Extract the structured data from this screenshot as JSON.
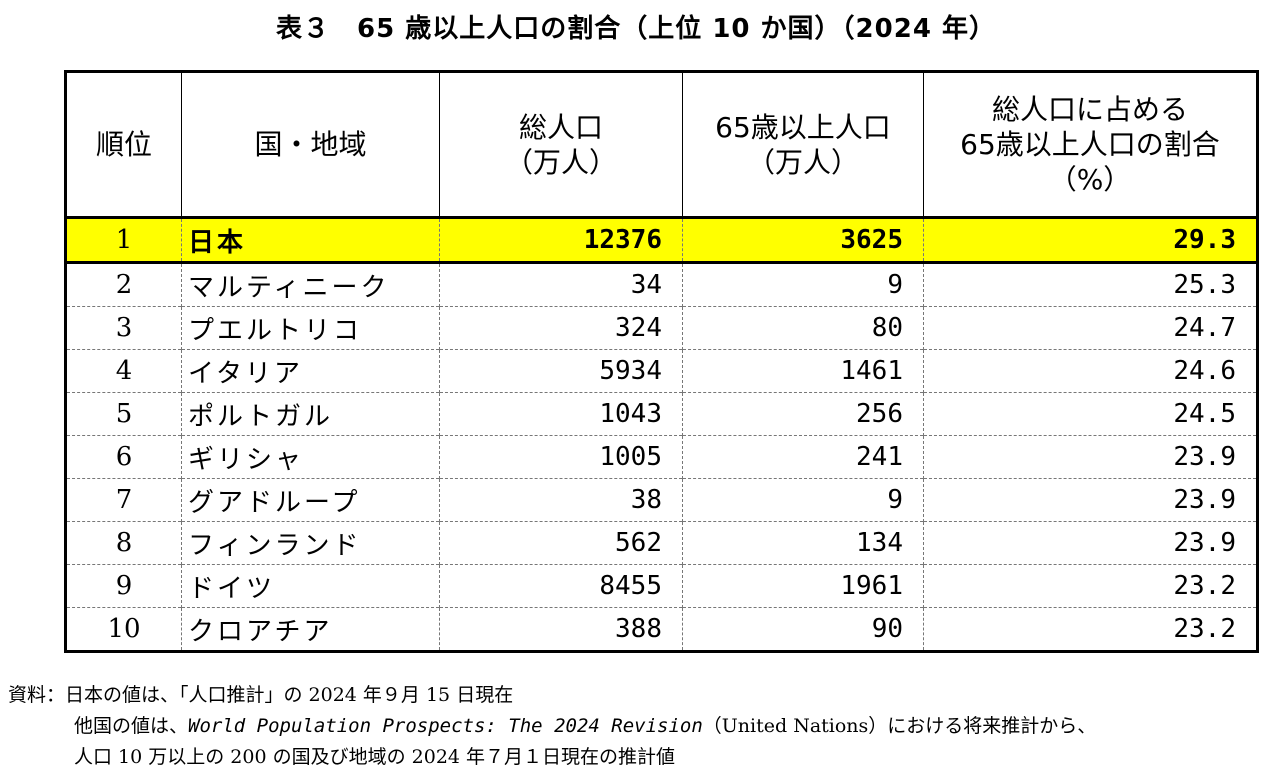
{
  "title": "表３　65 歳以上人口の割合（上位 10 か国）（2024 年）",
  "table": {
    "headers": {
      "rank": "順位",
      "country": "国・地域",
      "total_l1": "総人口",
      "total_l2": "（万人）",
      "aged_l1": "65歳以上人口",
      "aged_l2": "（万人）",
      "ratio_l1": "総人口に占める",
      "ratio_l2": "65歳以上人口の割合",
      "ratio_l3": "（%）"
    },
    "rows": [
      {
        "rank": "1",
        "country": "日本",
        "total": "12376",
        "aged": "3625",
        "ratio": "29.3"
      },
      {
        "rank": "2",
        "country": "マルティニーク",
        "total": "34",
        "aged": "9",
        "ratio": "25.3"
      },
      {
        "rank": "3",
        "country": "プエルトリコ",
        "total": "324",
        "aged": "80",
        "ratio": "24.7"
      },
      {
        "rank": "4",
        "country": "イタリア",
        "total": "5934",
        "aged": "1461",
        "ratio": "24.6"
      },
      {
        "rank": "5",
        "country": "ポルトガル",
        "total": "1043",
        "aged": "256",
        "ratio": "24.5"
      },
      {
        "rank": "6",
        "country": "ギリシャ",
        "total": "1005",
        "aged": "241",
        "ratio": "23.9"
      },
      {
        "rank": "7",
        "country": "グアドループ",
        "total": "38",
        "aged": "9",
        "ratio": "23.9"
      },
      {
        "rank": "8",
        "country": "フィンランド",
        "total": "562",
        "aged": "134",
        "ratio": "23.9"
      },
      {
        "rank": "9",
        "country": "ドイツ",
        "total": "8455",
        "aged": "1961",
        "ratio": "23.2"
      },
      {
        "rank": "10",
        "country": "クロアチア",
        "total": "388",
        "aged": "90",
        "ratio": "23.2"
      }
    ]
  },
  "source": {
    "line1": "資料：日本の値は、「人口推計」の 2024 年９月 15 日現在",
    "line2_a": "他国の値は、",
    "line2_italic": "World Population Prospects: The 2024 Revision",
    "line2_b": "（United Nations）における将来推計から、",
    "line3": "人口 10 万以上の 200 の国及び地域の 2024 年７月１日現在の推計値"
  },
  "colors": {
    "highlight": "#ffff00"
  }
}
